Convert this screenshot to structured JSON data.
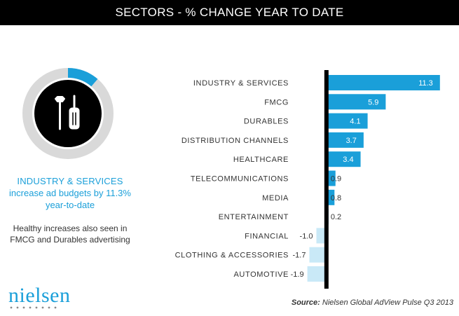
{
  "header": {
    "title": "SECTORS - % CHANGE  YEAR TO DATE"
  },
  "headline": {
    "title": "INDUSTRY & SERVICES",
    "line2": "increase ad budgets by 11.3%",
    "line3": "year-to-date"
  },
  "subtext": {
    "line1": "Healthy increases also seen in",
    "line2": "FMCG and Durables advertising"
  },
  "brand": {
    "name": "nielsen"
  },
  "source": {
    "label": "Source:",
    "text": " Nielsen Global AdView Pulse Q3 2013"
  },
  "icons": {
    "donut": "donut-progress-ring",
    "center": "tools-icon",
    "donut_value_percent": 11.3
  },
  "colors": {
    "bar_positive": "#1a9fd9",
    "bar_negative": "#c9e9f7",
    "axis": "#000000",
    "label_text": "#333333",
    "accent": "#1a9fd9",
    "donut_track": "#d9d9d9"
  },
  "chart_data": {
    "type": "bar",
    "orientation": "horizontal",
    "categories": [
      "INDUSTRY & SERVICES",
      "FMCG",
      "DURABLES",
      "DISTRIBUTION CHANNELS",
      "HEALTHCARE",
      "TELECOMMUNICATIONS",
      "MEDIA",
      "ENTERTAINMENT",
      "FINANCIAL",
      "CLOTHING & ACCESSORIES",
      "AUTOMOTIVE"
    ],
    "values": [
      11.3,
      5.9,
      4.1,
      3.7,
      3.4,
      0.9,
      0.8,
      0.2,
      -1.0,
      -1.7,
      -1.9
    ],
    "labels": [
      "11.3",
      "5.9",
      "4.1",
      "3.7",
      "3.4",
      "0.9",
      "0.8",
      "0.2",
      "-1.0",
      "-1.7",
      "-1.9"
    ],
    "title": "SECTORS - % CHANGE  YEAR TO DATE",
    "xlabel": "",
    "ylabel": "",
    "xlim": [
      -2.5,
      12.5
    ],
    "grid": false,
    "legend": "none"
  }
}
